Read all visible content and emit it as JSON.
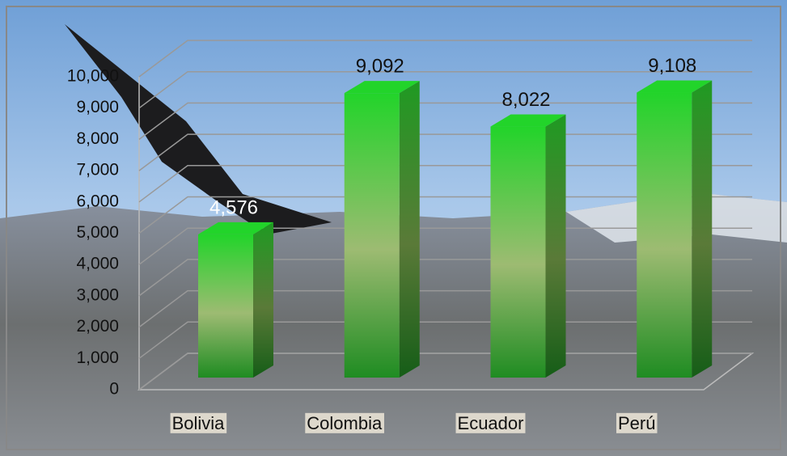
{
  "chart_data": {
    "type": "bar",
    "categories": [
      "Bolivia",
      "Colombia",
      "Ecuador",
      "Perú"
    ],
    "values": [
      4576,
      9092,
      8022,
      9108
    ],
    "value_labels": [
      "4,576",
      "9,092",
      "8,022",
      "9,108"
    ],
    "color": "#22d42a",
    "ylim": [
      0,
      10000
    ],
    "yticks": [
      0,
      {
        "value": 1000,
        "label": "1,000"
      },
      {
        "value": 2000,
        "label": "2,000"
      },
      {
        "value": 3000,
        "label": "3,000"
      },
      {
        "value": 4000,
        "label": "4,000"
      },
      {
        "value": 5000,
        "label": "5,000"
      },
      {
        "value": 6000,
        "label": "6,000"
      },
      {
        "value": 7000,
        "label": "7,000"
      },
      {
        "value": 8000,
        "label": "8,000"
      },
      {
        "value": 9000,
        "label": "9,000"
      },
      {
        "value": 10000,
        "label": "10,000"
      }
    ],
    "grid": true
  }
}
